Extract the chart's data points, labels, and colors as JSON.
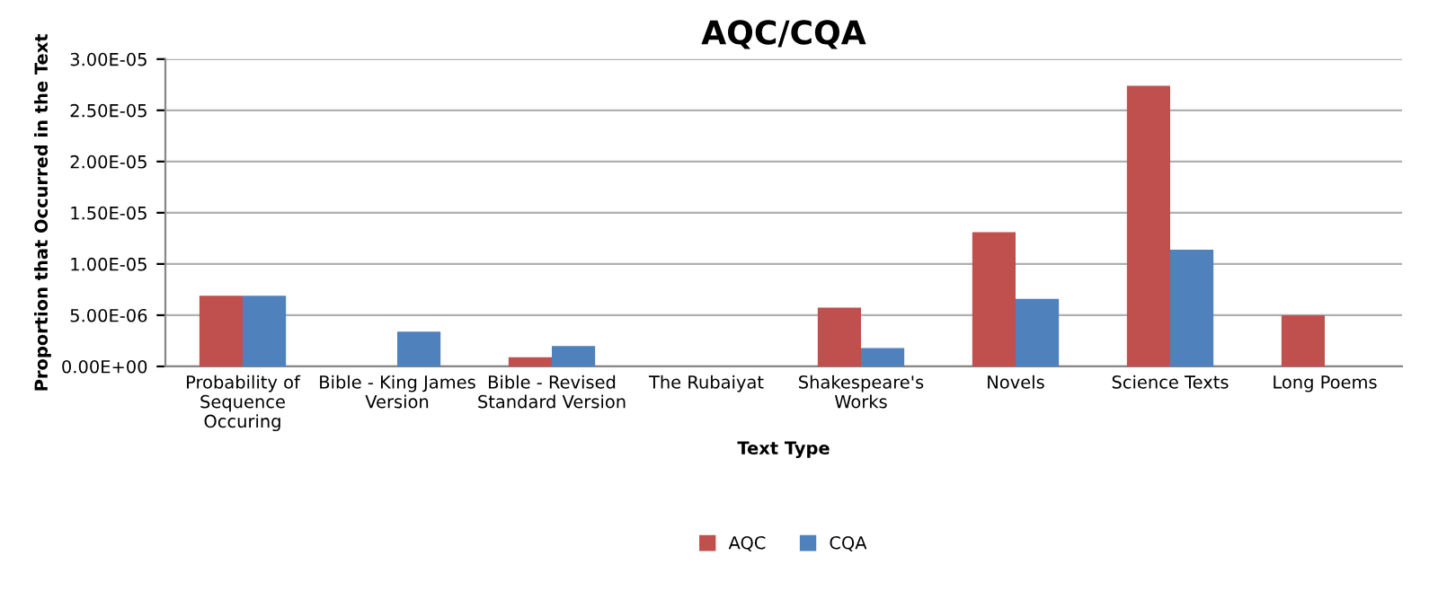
{
  "chart_data": {
    "type": "bar",
    "title": "AQC/CQA",
    "xlabel": "Text Type",
    "ylabel": "Proportion that Occurred in the Text",
    "categories": [
      "Probability of\nSequence\nOccuring",
      "Bible - King James\nVersion",
      "Bible - Revised\nStandard Version",
      "The Rubaiyat",
      "Shakespeare's\nWorks",
      "Novels",
      "Science Texts",
      "Long Poems"
    ],
    "series": [
      {
        "name": "AQC",
        "color": "#c0504d",
        "values": [
          6.9e-06,
          0,
          9e-07,
          0,
          5.75e-06,
          1.31e-05,
          2.74e-05,
          5e-06
        ]
      },
      {
        "name": "CQA",
        "color": "#4f81bd",
        "values": [
          6.9e-06,
          3.4e-06,
          2e-06,
          0,
          1.8e-06,
          6.6e-06,
          1.14e-05,
          0
        ]
      }
    ],
    "ylim": [
      0,
      3e-05
    ],
    "yticks": [
      {
        "value": 0,
        "label": "0.00E+00"
      },
      {
        "value": 5e-06,
        "label": "5.00E-06"
      },
      {
        "value": 1e-05,
        "label": "1.00E-05"
      },
      {
        "value": 1.5e-05,
        "label": "1.50E-05"
      },
      {
        "value": 2e-05,
        "label": "2.00E-05"
      },
      {
        "value": 2.5e-05,
        "label": "2.50E-05"
      },
      {
        "value": 3e-05,
        "label": "3.00E-05"
      }
    ],
    "grid": "y",
    "legend": "bottom"
  }
}
